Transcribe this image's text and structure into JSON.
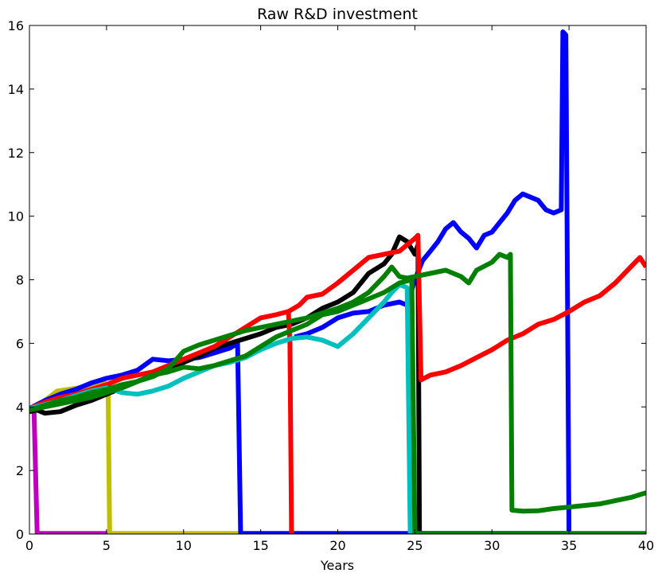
{
  "chart_data": {
    "type": "line",
    "title": "Raw R&D investment",
    "xlabel": "Years",
    "ylabel": "",
    "xlim": [
      0,
      40
    ],
    "ylim": [
      0,
      16
    ],
    "xticks": [
      0,
      5,
      10,
      15,
      20,
      25,
      30,
      35,
      40
    ],
    "yticks": [
      0,
      2,
      4,
      6,
      8,
      10,
      12,
      14,
      16
    ],
    "grid": false,
    "legend": false,
    "series": [
      {
        "color": "#bf00bf",
        "points": [
          [
            0,
            3.9
          ],
          [
            0.3,
            3.85
          ],
          [
            0.5,
            0.02
          ],
          [
            5.2,
            0.02
          ]
        ]
      },
      {
        "color": "#bfbf00",
        "points": [
          [
            0,
            3.9
          ],
          [
            1,
            4.2
          ],
          [
            1.8,
            4.5
          ],
          [
            2.5,
            4.55
          ],
          [
            3.2,
            4.6
          ],
          [
            4,
            4.7
          ],
          [
            4.6,
            4.8
          ],
          [
            5.1,
            4.7
          ],
          [
            5.2,
            0.02
          ],
          [
            13.6,
            0.02
          ]
        ]
      },
      {
        "color": "#0000ff",
        "points": [
          [
            0,
            3.95
          ],
          [
            1,
            4.2
          ],
          [
            2,
            4.4
          ],
          [
            3,
            4.55
          ],
          [
            4,
            4.75
          ],
          [
            5,
            4.9
          ],
          [
            6,
            5.0
          ],
          [
            7,
            5.15
          ],
          [
            8,
            5.5
          ],
          [
            9,
            5.45
          ],
          [
            10,
            5.5
          ],
          [
            11,
            5.55
          ],
          [
            12,
            5.7
          ],
          [
            13,
            5.85
          ],
          [
            13.5,
            6.0
          ],
          [
            13.7,
            0.02
          ],
          [
            24.6,
            0.02
          ],
          [
            25.2,
            0.02
          ],
          [
            34.8,
            0.02
          ]
        ]
      },
      {
        "color": "#0000ff",
        "points": [
          [
            17.2,
            6.2
          ],
          [
            18,
            6.3
          ],
          [
            19,
            6.5
          ],
          [
            20,
            6.8
          ],
          [
            21,
            6.95
          ],
          [
            22,
            7.0
          ],
          [
            23,
            7.2
          ],
          [
            24,
            7.3
          ],
          [
            24.5,
            7.2
          ],
          [
            25,
            8.0
          ],
          [
            25.5,
            8.6
          ],
          [
            26,
            8.9
          ],
          [
            26.5,
            9.2
          ],
          [
            27,
            9.6
          ],
          [
            27.5,
            9.8
          ],
          [
            28,
            9.5
          ],
          [
            28.5,
            9.3
          ],
          [
            29,
            9.0
          ],
          [
            29.5,
            9.4
          ],
          [
            30,
            9.5
          ],
          [
            30.5,
            9.8
          ],
          [
            31,
            10.1
          ],
          [
            31.5,
            10.5
          ],
          [
            32,
            10.7
          ],
          [
            32.5,
            10.6
          ],
          [
            33,
            10.5
          ],
          [
            33.5,
            10.2
          ],
          [
            34,
            10.1
          ],
          [
            34.5,
            10.2
          ],
          [
            34.6,
            15.8
          ],
          [
            34.8,
            15.7
          ],
          [
            35.0,
            0.02
          ]
        ]
      },
      {
        "color": "#000000",
        "points": [
          [
            0,
            3.85
          ],
          [
            0.5,
            3.9
          ],
          [
            1,
            3.8
          ],
          [
            2,
            3.85
          ],
          [
            3,
            4.05
          ],
          [
            4,
            4.2
          ],
          [
            5,
            4.4
          ],
          [
            6,
            4.6
          ],
          [
            7,
            4.8
          ],
          [
            8,
            5.0
          ],
          [
            9,
            5.2
          ],
          [
            10,
            5.4
          ],
          [
            11,
            5.6
          ],
          [
            12,
            5.85
          ],
          [
            13,
            6.0
          ],
          [
            14,
            6.15
          ],
          [
            15,
            6.3
          ],
          [
            16,
            6.5
          ],
          [
            17,
            6.6
          ],
          [
            18,
            6.8
          ],
          [
            19,
            7.1
          ],
          [
            20,
            7.3
          ],
          [
            21,
            7.6
          ],
          [
            22,
            8.2
          ],
          [
            23,
            8.5
          ],
          [
            23.5,
            8.8
          ],
          [
            24,
            9.35
          ],
          [
            24.5,
            9.2
          ],
          [
            25,
            8.8
          ],
          [
            25.2,
            9.1
          ],
          [
            25.3,
            0.02
          ]
        ]
      },
      {
        "color": "#ff0000",
        "points": [
          [
            0,
            3.95
          ],
          [
            1,
            4.15
          ],
          [
            2,
            4.3
          ],
          [
            3,
            4.4
          ],
          [
            4,
            4.55
          ],
          [
            5,
            4.7
          ],
          [
            6,
            4.9
          ],
          [
            7,
            5.0
          ],
          [
            8,
            5.1
          ],
          [
            9,
            5.3
          ],
          [
            10,
            5.5
          ],
          [
            11,
            5.7
          ],
          [
            12,
            5.9
          ],
          [
            13,
            6.2
          ],
          [
            14,
            6.5
          ],
          [
            15,
            6.8
          ],
          [
            16,
            6.9
          ],
          [
            16.8,
            7.0
          ],
          [
            16.9,
            6.0
          ],
          [
            17.0,
            0.02
          ]
        ]
      },
      {
        "color": "#ff0000",
        "points": [
          [
            16.8,
            7.0
          ],
          [
            17.5,
            7.2
          ],
          [
            18,
            7.45
          ],
          [
            19,
            7.55
          ],
          [
            20,
            7.9
          ],
          [
            21,
            8.3
          ],
          [
            22,
            8.7
          ],
          [
            23,
            8.8
          ],
          [
            24,
            8.9
          ],
          [
            24.5,
            9.1
          ],
          [
            25,
            9.3
          ],
          [
            25.2,
            9.4
          ],
          [
            25.4,
            4.85
          ],
          [
            26,
            5.0
          ],
          [
            27,
            5.1
          ],
          [
            28,
            5.3
          ],
          [
            29,
            5.55
          ],
          [
            30,
            5.8
          ],
          [
            31,
            6.1
          ],
          [
            32,
            6.3
          ],
          [
            33,
            6.6
          ],
          [
            34,
            6.75
          ],
          [
            35,
            7.0
          ],
          [
            36,
            7.3
          ],
          [
            37,
            7.5
          ],
          [
            38,
            7.9
          ],
          [
            39,
            8.4
          ],
          [
            39.6,
            8.7
          ],
          [
            40,
            8.4
          ]
        ]
      },
      {
        "color": "#00bfbf",
        "points": [
          [
            0,
            3.95
          ],
          [
            2,
            4.2
          ],
          [
            4,
            4.5
          ],
          [
            5,
            4.6
          ],
          [
            6,
            4.45
          ],
          [
            7,
            4.4
          ],
          [
            8,
            4.5
          ],
          [
            9,
            4.65
          ],
          [
            10,
            4.9
          ],
          [
            11,
            5.1
          ],
          [
            12,
            5.3
          ],
          [
            13,
            5.4
          ],
          [
            14,
            5.55
          ],
          [
            15,
            5.8
          ],
          [
            16,
            6.0
          ],
          [
            17,
            6.15
          ],
          [
            18,
            6.2
          ],
          [
            19,
            6.1
          ],
          [
            20,
            5.9
          ],
          [
            21,
            6.3
          ],
          [
            22,
            6.8
          ],
          [
            23,
            7.3
          ],
          [
            23.5,
            7.6
          ],
          [
            24,
            7.85
          ],
          [
            24.5,
            7.75
          ],
          [
            24.7,
            0.02
          ]
        ]
      },
      {
        "color": "#008000",
        "points": [
          [
            0,
            3.9
          ],
          [
            1,
            4.05
          ],
          [
            2,
            4.2
          ],
          [
            3,
            4.3
          ],
          [
            4,
            4.45
          ],
          [
            5,
            4.55
          ],
          [
            6,
            4.7
          ],
          [
            7,
            4.8
          ],
          [
            8,
            4.95
          ],
          [
            9,
            5.2
          ],
          [
            10,
            5.75
          ],
          [
            11,
            5.95
          ],
          [
            12,
            6.1
          ],
          [
            13,
            6.25
          ],
          [
            14,
            6.4
          ],
          [
            15,
            6.5
          ],
          [
            16,
            6.6
          ],
          [
            17,
            6.7
          ],
          [
            18,
            6.8
          ],
          [
            19,
            6.95
          ],
          [
            20,
            7.1
          ],
          [
            21,
            7.3
          ],
          [
            22,
            7.6
          ],
          [
            23,
            8.1
          ],
          [
            23.5,
            8.4
          ],
          [
            24,
            8.1
          ],
          [
            24.5,
            8.05
          ],
          [
            25,
            8.1
          ],
          [
            26,
            8.2
          ],
          [
            27,
            8.3
          ],
          [
            28,
            8.1
          ],
          [
            28.5,
            7.9
          ],
          [
            29,
            8.3
          ],
          [
            30,
            8.55
          ],
          [
            30.5,
            8.8
          ],
          [
            31,
            8.7
          ],
          [
            31.2,
            8.8
          ],
          [
            31.3,
            0.75
          ],
          [
            32,
            0.72
          ],
          [
            33,
            0.73
          ],
          [
            34,
            0.8
          ],
          [
            35,
            0.85
          ],
          [
            36,
            0.9
          ],
          [
            37,
            0.95
          ],
          [
            38,
            1.05
          ],
          [
            39,
            1.15
          ],
          [
            40,
            1.3
          ]
        ]
      },
      {
        "color": "#008000",
        "points": [
          [
            0,
            3.9
          ],
          [
            2,
            4.1
          ],
          [
            4,
            4.3
          ],
          [
            6,
            4.6
          ],
          [
            8,
            5.0
          ],
          [
            9,
            5.1
          ],
          [
            10,
            5.25
          ],
          [
            11,
            5.2
          ],
          [
            12,
            5.3
          ],
          [
            13,
            5.45
          ],
          [
            14,
            5.6
          ],
          [
            15,
            5.9
          ],
          [
            16,
            6.2
          ],
          [
            17,
            6.4
          ],
          [
            18,
            6.6
          ],
          [
            19,
            6.9
          ],
          [
            20,
            7.0
          ],
          [
            21,
            7.2
          ],
          [
            22,
            7.4
          ],
          [
            23,
            7.6
          ],
          [
            24,
            7.9
          ],
          [
            24.8,
            8.0
          ],
          [
            25.0,
            0.02
          ],
          [
            40,
            0.02
          ]
        ]
      }
    ]
  }
}
